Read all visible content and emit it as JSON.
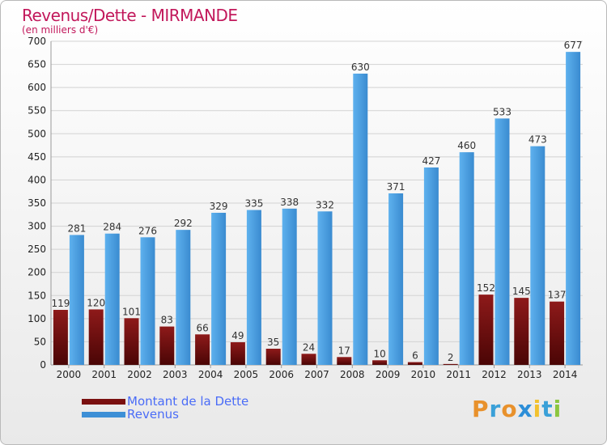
{
  "chart_data": {
    "type": "bar",
    "title": "Revenus/Dette - MIRMANDE",
    "subtitle": "(en milliers d'€)",
    "categories": [
      "2000",
      "2001",
      "2002",
      "2003",
      "2004",
      "2005",
      "2006",
      "2007",
      "2008",
      "2009",
      "2010",
      "2011",
      "2012",
      "2013",
      "2014"
    ],
    "series": [
      {
        "name": "Montant de la Dette",
        "color": "#7a1010",
        "values": [
          119,
          120,
          101,
          83,
          66,
          49,
          35,
          24,
          17,
          10,
          6,
          2,
          152,
          145,
          137
        ]
      },
      {
        "name": "Revenus",
        "color": "#3d8fd6",
        "values": [
          281,
          284,
          276,
          292,
          329,
          335,
          338,
          332,
          630,
          371,
          427,
          460,
          533,
          473,
          677
        ]
      }
    ],
    "ylim": [
      0,
      700
    ],
    "yticks": [
      0,
      50,
      100,
      150,
      200,
      250,
      300,
      350,
      400,
      450,
      500,
      550,
      600,
      650,
      700
    ],
    "grid": true,
    "legend_position": "bottom-left"
  },
  "logo": {
    "letters": [
      "P",
      "r",
      "o",
      "x",
      "i",
      "t",
      "i"
    ],
    "colors": [
      "#e8912c",
      "#3aa0d8",
      "#e8912c",
      "#2c8ed8",
      "#f2c12e",
      "#3aa0d8",
      "#8cc63f"
    ]
  }
}
